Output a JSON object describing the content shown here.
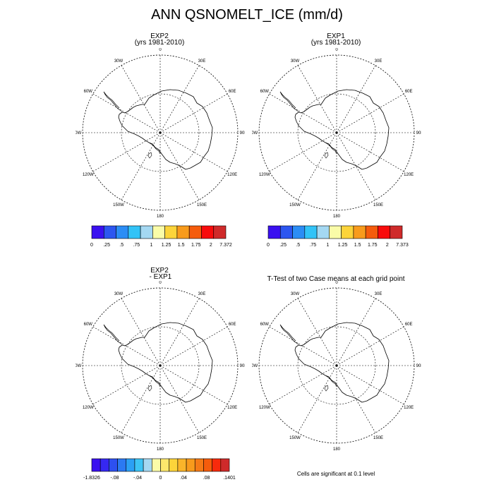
{
  "title": "ANN QSNOMELT_ICE (mm/d)",
  "panels": [
    {
      "title_line1": "EXP2",
      "title_line2": "(yrs 1981-2010)"
    },
    {
      "title_line1": "EXP1",
      "title_line2": "(yrs 1981-2010)"
    },
    {
      "title_line1": "EXP2",
      "title_line2": " - EXP1"
    },
    {
      "title_line1": "T-Test of two Case means at each grid point",
      "title_line2": ""
    }
  ],
  "longitude_labels": [
    "0",
    "30E",
    "60E",
    "90E",
    "120E",
    "150E",
    "180",
    "150W",
    "120W",
    "90W",
    "60W",
    "30W"
  ],
  "colorbars": [
    {
      "colors": [
        "#3a10f0",
        "#2c56f0",
        "#2b8df5",
        "#32c3f7",
        "#a4d8f2",
        "#fafca8",
        "#fcd43a",
        "#f89b1c",
        "#f55c0c",
        "#f80c0c",
        "#cf2a2a"
      ],
      "labels": [
        "0",
        ".25",
        ".5",
        ".75",
        "1",
        "1.25",
        "1.5",
        "1.75",
        "2",
        "7.372"
      ]
    },
    {
      "colors": [
        "#3a10f0",
        "#2c56f0",
        "#2b8df5",
        "#32c3f7",
        "#a4d8f2",
        "#fafca8",
        "#fcd43a",
        "#f89b1c",
        "#f55c0c",
        "#f80c0c",
        "#cf2a2a"
      ],
      "labels": [
        "0",
        ".25",
        ".5",
        ".75",
        "1",
        "1.25",
        "1.5",
        "1.75",
        "2",
        "7.373"
      ]
    },
    {
      "colors": [
        "#3a10f0",
        "#3528f2",
        "#2d50f0",
        "#2b79f2",
        "#2ba0f5",
        "#3cc4f5",
        "#a4d8f2",
        "#fafca8",
        "#fce76c",
        "#fcd43a",
        "#fab52a",
        "#f89b1c",
        "#f57a16",
        "#f55c0c",
        "#f82a0c",
        "#cf2a2a"
      ],
      "labels": [
        "-1.8326",
        "-.08",
        "-.04",
        "0",
        ".04",
        ".08",
        ".1401"
      ]
    }
  ],
  "significance_note": "Cells are significant at 0.1 level"
}
